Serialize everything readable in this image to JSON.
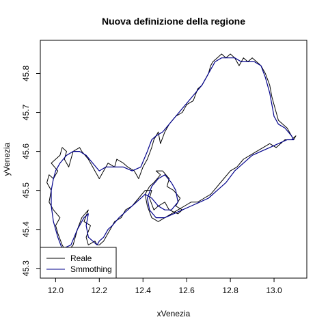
{
  "chart_data": {
    "type": "line",
    "title": "Nuova definizione della regione",
    "xlabel": "xVenezia",
    "ylabel": "yVenezia",
    "xlim": [
      11.93,
      13.15
    ],
    "ylim": [
      45.275,
      45.885
    ],
    "x_ticks": [
      12.0,
      12.2,
      12.4,
      12.6,
      12.8,
      13.0
    ],
    "x_tick_labels": [
      "12.0",
      "12.2",
      "12.4",
      "12.6",
      "12.8",
      "13.0"
    ],
    "y_ticks": [
      45.3,
      45.4,
      45.5,
      45.6,
      45.7,
      45.8
    ],
    "y_tick_labels": [
      "45.3",
      "45.4",
      "45.5",
      "45.6",
      "45.7",
      "45.8"
    ],
    "grid": false,
    "legend_position": "bottom-left",
    "series": [
      {
        "name": "Reale",
        "color": "#000000",
        "x": [
          12.19,
          12.18,
          12.15,
          12.14,
          12.16,
          12.13,
          12.15,
          12.12,
          12.1,
          12.08,
          12.05,
          12.03,
          12.01,
          12.0,
          12.02,
          11.99,
          11.97,
          11.98,
          11.96,
          11.97,
          11.99,
          12.01,
          11.98,
          12.0,
          12.02,
          12.03,
          12.05,
          12.04,
          12.06,
          12.08,
          12.11,
          12.12,
          12.15,
          12.17,
          12.19,
          12.2,
          12.22,
          12.24,
          12.27,
          12.28,
          12.31,
          12.33,
          12.36,
          12.38,
          12.4,
          12.42,
          12.44,
          12.45,
          12.47,
          12.48,
          12.5,
          12.52,
          12.55,
          12.58,
          12.6,
          12.63,
          12.65,
          12.67,
          12.69,
          12.7,
          12.71,
          12.72,
          12.74,
          12.76,
          12.78,
          12.8,
          12.82,
          12.84,
          12.86,
          12.88,
          12.9,
          12.92,
          12.94,
          12.96,
          12.98,
          12.99,
          13.0,
          13.01,
          13.02,
          13.04,
          13.06,
          13.07,
          13.09,
          13.1,
          13.08,
          13.05,
          13.03,
          13.01,
          12.98,
          12.95,
          12.92,
          12.89,
          12.86,
          12.83,
          12.8,
          12.77,
          12.74,
          12.71,
          12.68,
          12.65,
          12.62,
          12.59,
          12.56,
          12.53,
          12.5,
          12.47,
          12.44,
          12.42,
          12.41,
          12.43,
          12.45,
          12.48,
          12.46,
          12.49,
          12.52,
          12.51,
          12.54,
          12.57,
          12.55,
          12.58,
          12.56,
          12.52,
          12.5,
          12.47,
          12.45,
          12.43,
          12.44,
          12.41,
          12.38,
          12.35,
          12.32,
          12.3,
          12.27,
          12.25,
          12.24,
          12.22,
          12.2,
          12.19
        ],
        "y": [
          45.36,
          45.37,
          45.36,
          45.38,
          45.41,
          45.42,
          45.45,
          45.43,
          45.4,
          45.36,
          45.34,
          45.36,
          45.39,
          45.41,
          45.43,
          45.45,
          45.47,
          45.5,
          45.52,
          45.54,
          45.53,
          45.55,
          45.57,
          45.58,
          45.59,
          45.61,
          45.6,
          45.58,
          45.56,
          45.6,
          45.61,
          45.6,
          45.58,
          45.56,
          45.54,
          45.53,
          45.55,
          45.57,
          45.56,
          45.58,
          45.57,
          45.56,
          45.55,
          45.53,
          45.56,
          45.58,
          45.61,
          45.63,
          45.65,
          45.62,
          45.65,
          45.67,
          45.69,
          45.7,
          45.72,
          45.73,
          45.76,
          45.77,
          45.79,
          45.8,
          45.82,
          45.83,
          45.84,
          45.85,
          45.84,
          45.85,
          45.84,
          45.82,
          45.84,
          45.83,
          45.84,
          45.83,
          45.82,
          45.8,
          45.77,
          45.74,
          45.72,
          45.7,
          45.68,
          45.67,
          45.66,
          45.65,
          45.63,
          45.64,
          45.63,
          45.63,
          45.62,
          45.61,
          45.62,
          45.61,
          45.6,
          45.59,
          45.58,
          45.56,
          45.55,
          45.53,
          45.51,
          45.49,
          45.48,
          45.47,
          45.47,
          45.46,
          45.45,
          45.44,
          45.43,
          45.42,
          45.43,
          45.46,
          45.49,
          45.51,
          45.52,
          45.54,
          45.55,
          45.55,
          45.53,
          45.51,
          45.5,
          45.48,
          45.46,
          45.45,
          45.44,
          45.45,
          45.47,
          45.46,
          45.45,
          45.48,
          45.5,
          45.5,
          45.48,
          45.46,
          45.45,
          45.43,
          45.42,
          45.4,
          45.39,
          45.37,
          45.36,
          45.36
        ]
      },
      {
        "name": "Smmothing",
        "color": "#00008b",
        "x": [
          12.19,
          12.17,
          12.15,
          12.14,
          12.15,
          12.13,
          12.1,
          12.07,
          12.03,
          12.01,
          11.99,
          11.98,
          11.98,
          11.99,
          12.0,
          12.02,
          12.05,
          12.08,
          12.11,
          12.14,
          12.17,
          12.2,
          12.23,
          12.27,
          12.31,
          12.35,
          12.39,
          12.42,
          12.44,
          12.46,
          12.49,
          12.52,
          12.55,
          12.58,
          12.61,
          12.64,
          12.67,
          12.69,
          12.71,
          12.73,
          12.76,
          12.79,
          12.82,
          12.85,
          12.88,
          12.91,
          12.94,
          12.96,
          12.98,
          12.99,
          13.0,
          13.02,
          13.05,
          13.08,
          13.09,
          13.06,
          13.02,
          12.98,
          12.94,
          12.9,
          12.86,
          12.82,
          12.78,
          12.74,
          12.7,
          12.66,
          12.62,
          12.58,
          12.54,
          12.5,
          12.46,
          12.43,
          12.42,
          12.44,
          12.47,
          12.5,
          12.53,
          12.55,
          12.56,
          12.53,
          12.5,
          12.47,
          12.44,
          12.41,
          12.37,
          12.33,
          12.29,
          12.26,
          12.24,
          12.22,
          12.2,
          12.19
        ],
        "y": [
          45.36,
          45.37,
          45.38,
          45.41,
          45.44,
          45.43,
          45.4,
          45.36,
          45.35,
          45.38,
          45.42,
          45.46,
          45.5,
          45.53,
          45.55,
          45.57,
          45.59,
          45.6,
          45.6,
          45.59,
          45.57,
          45.55,
          45.56,
          45.56,
          45.56,
          45.55,
          45.56,
          45.6,
          45.63,
          45.64,
          45.65,
          45.67,
          45.69,
          45.71,
          45.73,
          45.75,
          45.77,
          45.79,
          45.81,
          45.83,
          45.84,
          45.84,
          45.84,
          45.83,
          45.83,
          45.83,
          45.82,
          45.79,
          45.75,
          45.72,
          45.69,
          45.67,
          45.66,
          45.64,
          45.63,
          45.63,
          45.62,
          45.61,
          45.6,
          45.59,
          45.57,
          45.55,
          45.52,
          45.5,
          45.48,
          45.47,
          45.46,
          45.45,
          45.44,
          45.43,
          45.43,
          45.45,
          45.48,
          45.51,
          45.53,
          45.54,
          45.52,
          45.5,
          45.47,
          45.45,
          45.45,
          45.46,
          45.48,
          45.49,
          45.47,
          45.45,
          45.43,
          45.41,
          45.4,
          45.38,
          45.37,
          45.36
        ]
      }
    ]
  }
}
